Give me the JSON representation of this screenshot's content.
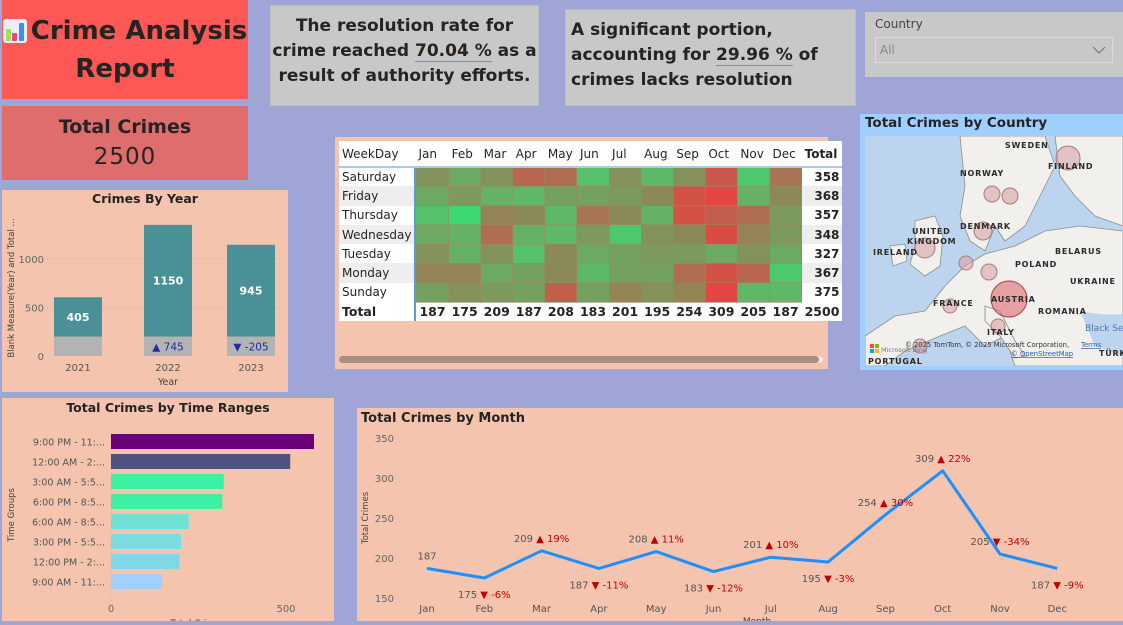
{
  "header": {
    "title_line1": "Crime Analysis",
    "title_line2": "Report",
    "title_icon": "bar-chart-emoji-icon"
  },
  "total_card": {
    "label": "Total Crimes",
    "value": "2500"
  },
  "info_cards": [
    {
      "pre": "The resolution rate for crime reached ",
      "value": "70.04 %",
      "post": " as a result of authority efforts."
    },
    {
      "pre": "A significant portion, accounting for ",
      "value": "29.96 %",
      "post": " of crimes lacks resolution"
    }
  ],
  "slicer": {
    "label": "Country",
    "selected": "All",
    "icon": "chevron-down-icon"
  },
  "colors": {
    "title_bg": "#fd5856",
    "total_bg": "#e06d6d",
    "panel_bg": "#f4c4ae",
    "page_bg": "#a0a5d8",
    "bar_teal": "#4a9197",
    "bar_gray": "#b3b3b3",
    "line_blue": "#1e8fff",
    "delta_red": "#c00000",
    "delta_blue": "#1f2f9e"
  },
  "chart_data": [
    {
      "id": "crimes_by_year",
      "type": "bar",
      "title": "Crimes By Year",
      "xlabel": "Year",
      "ylabel": "Blank Measure(Year) and Total ...",
      "categories": [
        "2021",
        "2022",
        "2023"
      ],
      "series": [
        {
          "name": "Blank Measure(Year)",
          "values": [
            200,
            200,
            200
          ]
        },
        {
          "name": "Total Crimes",
          "values": [
            405,
            1150,
            945
          ]
        }
      ],
      "delta_labels": [
        "",
        "▲ 745",
        "▼ -205"
      ],
      "yticks": [
        0,
        500,
        1000
      ],
      "ylim": [
        0,
        1400
      ],
      "stacked": true
    },
    {
      "id": "crimes_by_time_ranges",
      "type": "bar",
      "orientation": "horizontal",
      "title": "Total Crimes by Time Ranges",
      "ylabel": "Time Groups",
      "xlabel": "Total Crimes",
      "categories": [
        "9:00 PM - 11:...",
        "12:00 AM - 2:...",
        "3:00 AM - 5:5...",
        "6:00 PM - 8:5...",
        "6:00 AM - 8:5...",
        "3:00 PM - 5:5...",
        "12:00 PM - 2:...",
        "9:00 AM - 11:..."
      ],
      "values": [
        580,
        512,
        322,
        318,
        222,
        200,
        195,
        145
      ],
      "bar_colors": [
        "#6b0077",
        "#51517e",
        "#3ef0a4",
        "#3ef0a4",
        "#6fe0d6",
        "#7adbe0",
        "#7fd8e6",
        "#a3cffe"
      ],
      "xticks": [
        0,
        500
      ],
      "xlim": [
        0,
        600
      ]
    },
    {
      "id": "crimes_by_month",
      "type": "line",
      "title": "Total Crimes by Month",
      "xlabel": "Month",
      "ylabel": "Total Crimes",
      "x": [
        "Jan",
        "Feb",
        "Mar",
        "Apr",
        "May",
        "Jun",
        "Jul",
        "Aug",
        "Sep",
        "Oct",
        "Nov",
        "Dec"
      ],
      "values": [
        187,
        175,
        209,
        187,
        208,
        183,
        201,
        195,
        254,
        309,
        205,
        187
      ],
      "deltas": [
        "",
        "▼ -6%",
        "▲ 19%",
        "▼ -11%",
        "▲ 11%",
        "▼ -12%",
        "▲ 10%",
        "▼ -3%",
        "▲ 30%",
        "▲ 22%",
        "▼ -34%",
        "▼ -9%"
      ],
      "yticks": [
        150,
        200,
        250,
        300,
        350
      ],
      "ylim": [
        150,
        350
      ],
      "grid": true
    },
    {
      "id": "weekday_month_matrix",
      "type": "table",
      "row_header": "WeekDay",
      "columns": [
        "Jan",
        "Feb",
        "Mar",
        "Apr",
        "May",
        "Jun",
        "Jul",
        "Aug",
        "Sep",
        "Oct",
        "Nov",
        "Dec"
      ],
      "total_label": "Total",
      "rows": [
        {
          "day": "Saturday",
          "total": "358",
          "heat": [
            0.45,
            0.3,
            0.45,
            0.75,
            0.7,
            0.15,
            0.45,
            0.2,
            0.45,
            0.85,
            0.1,
            0.65
          ]
        },
        {
          "day": "Friday",
          "total": "368",
          "heat": [
            0.3,
            0.4,
            0.25,
            0.2,
            0.35,
            0.35,
            0.4,
            0.5,
            0.9,
            1.0,
            0.25,
            0.5
          ]
        },
        {
          "day": "Thursday",
          "total": "357",
          "heat": [
            0.15,
            0.0,
            0.55,
            0.5,
            0.2,
            0.65,
            0.5,
            0.25,
            0.9,
            0.8,
            0.7,
            0.4
          ]
        },
        {
          "day": "Wednesday",
          "total": "348",
          "heat": [
            0.3,
            0.25,
            0.7,
            0.25,
            0.2,
            0.4,
            0.1,
            0.45,
            0.5,
            0.95,
            0.55,
            0.4
          ]
        },
        {
          "day": "Tuesday",
          "total": "327",
          "heat": [
            0.45,
            0.25,
            0.45,
            0.15,
            0.5,
            0.3,
            0.35,
            0.4,
            0.4,
            0.3,
            0.45,
            0.3
          ]
        },
        {
          "day": "Monday",
          "total": "367",
          "heat": [
            0.55,
            0.55,
            0.3,
            0.35,
            0.5,
            0.2,
            0.35,
            0.35,
            0.7,
            0.9,
            0.75,
            0.1
          ]
        },
        {
          "day": "Sunday",
          "total": "375",
          "heat": [
            0.35,
            0.45,
            0.4,
            0.35,
            0.8,
            0.35,
            0.55,
            0.45,
            0.55,
            1.0,
            0.2,
            0.2
          ]
        }
      ],
      "column_totals": [
        "187",
        "175",
        "209",
        "187",
        "208",
        "183",
        "201",
        "195",
        "254",
        "309",
        "205",
        "187"
      ],
      "grand_total": "2500"
    }
  ],
  "map": {
    "title": "Total Crimes by Country",
    "labels": [
      "SWEDEN",
      "FINLAND",
      "NORWAY",
      "UNITED",
      "KINGDOM",
      "DENMARK",
      "IRELAND",
      "BELARUS",
      "POLAND",
      "UKRAINE",
      "FRANCE",
      "AUSTRIA",
      "ROMANIA",
      "ITALY",
      "Black Se",
      "PORTUGAL",
      "TÜRK"
    ],
    "attribution": "© 2025 TomTom, © 2025 Microsoft Corporation,",
    "terms": "Terms",
    "osm": "© OpenStreetMap",
    "bing": "Microsoft Bing"
  }
}
